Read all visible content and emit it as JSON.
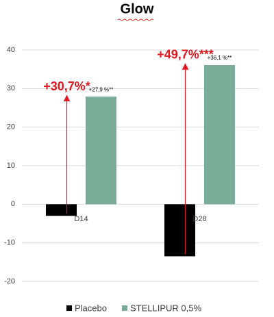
{
  "chart_data": {
    "type": "bar",
    "title": "Glow",
    "categories": [
      "D14",
      "D28"
    ],
    "series": [
      {
        "name": "Placebo",
        "color": "#000000",
        "values": [
          -3.0,
          -13.5
        ]
      },
      {
        "name": "STELLIPUR 0,5%",
        "color": "#79ab97",
        "values": [
          27.9,
          36.1
        ],
        "value_labels": [
          "+27,9 %**",
          "+36,1 %**"
        ]
      }
    ],
    "annotations": [
      "+30,7%*",
      "+49,7%***"
    ],
    "annotation_color": "#e0191f",
    "ylim": [
      -20,
      40
    ],
    "yticks": [
      -20,
      -10,
      0,
      10,
      20,
      30,
      40
    ],
    "grid": true,
    "legend": "bottom"
  }
}
